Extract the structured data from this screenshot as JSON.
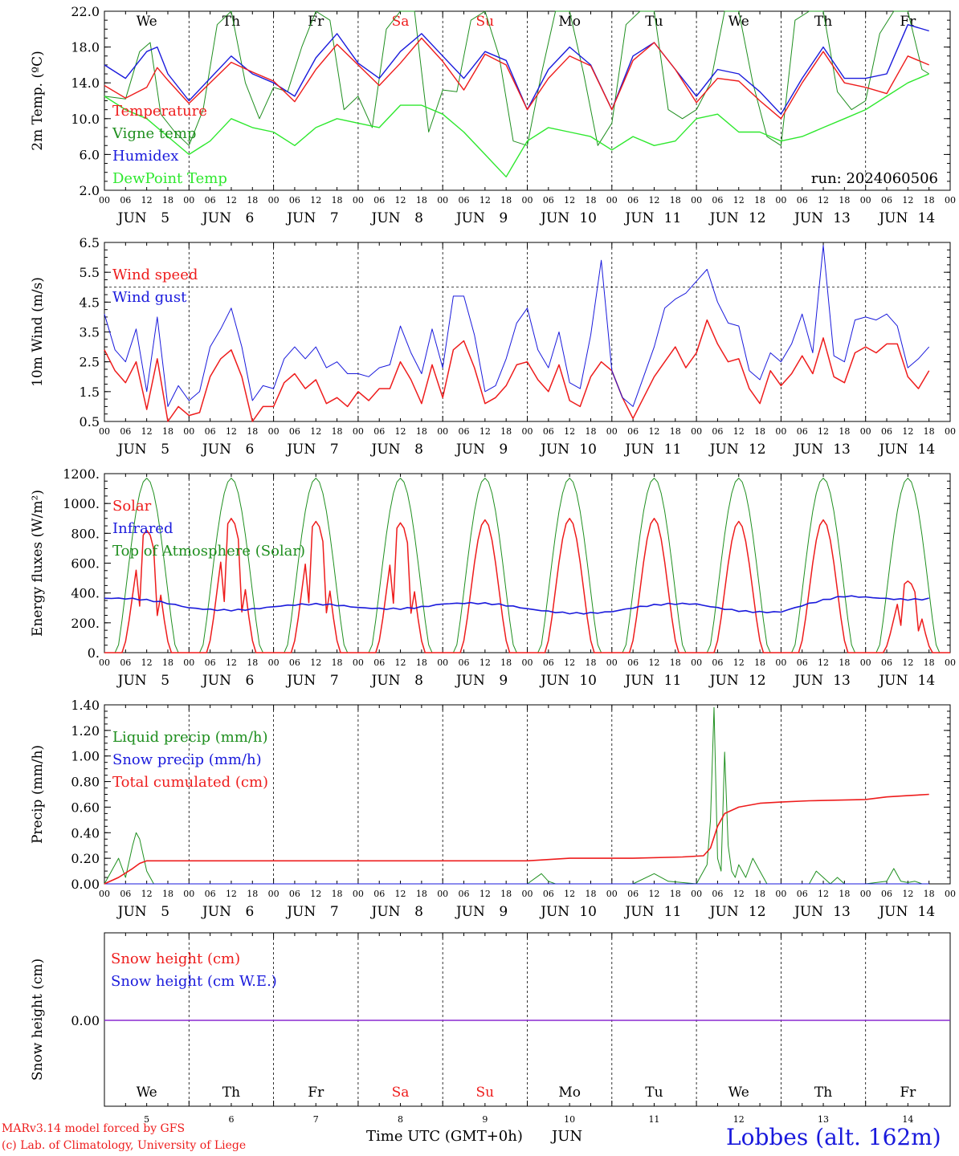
{
  "meteogram": {
    "run_label": "run: 2024060506",
    "days": [
      {
        "abbr": "We",
        "date": "5",
        "weekend": false
      },
      {
        "abbr": "Th",
        "date": "6",
        "weekend": false
      },
      {
        "abbr": "Fr",
        "date": "7",
        "weekend": false
      },
      {
        "abbr": "Sa",
        "date": "8",
        "weekend": true
      },
      {
        "abbr": "Su",
        "date": "9",
        "weekend": true
      },
      {
        "abbr": "Mo",
        "date": "10",
        "weekend": false
      },
      {
        "abbr": "Tu",
        "date": "11",
        "weekend": false
      },
      {
        "abbr": "We",
        "date": "12",
        "weekend": false
      },
      {
        "abbr": "Th",
        "date": "13",
        "weekend": false
      },
      {
        "abbr": "Fr",
        "date": "14",
        "weekend": false
      }
    ],
    "month": "JUN",
    "hour_ticks": [
      "00",
      "06",
      "12",
      "18"
    ],
    "final_tick": "00",
    "colors": {
      "red": "#ee1c1c",
      "green": "#1f8f1f",
      "blue": "#1a1adc",
      "lightgreen": "#2ee82e",
      "purple": "#8a2ad0",
      "weekend": "#ee1c1c"
    },
    "footer": {
      "model": "MARv3.14 model forced by GFS",
      "credit": "(c) Lab. of Climatology, University of Liege",
      "xlabel": "Time UTC (GMT+0h)",
      "month": "JUN",
      "location": "Lobbes (alt. 162m)"
    }
  },
  "chart_data": [
    {
      "type": "line",
      "ylabel": "2m Temp. (ºC)",
      "ylim": [
        2,
        22
      ],
      "yticks": [
        "2.0",
        "6.0",
        "10.0",
        "14.0",
        "18.0",
        "22.0"
      ],
      "x_unit": "hours since JUN 5 00 UTC",
      "legend": [
        "Temperature",
        "Vigne temp",
        "Humidex",
        "DewPoint Temp"
      ],
      "series": [
        {
          "name": "Temperature",
          "color": "red",
          "x": [
            0,
            6,
            12,
            15,
            18,
            24,
            30,
            36,
            42,
            48,
            54,
            60,
            66,
            72,
            78,
            84,
            90,
            96,
            102,
            108,
            114,
            120,
            126,
            132,
            138,
            144,
            150,
            156,
            162,
            168,
            174,
            180,
            186,
            192,
            198,
            204,
            210,
            216,
            222,
            228,
            234
          ],
          "y": [
            13.7,
            12.3,
            13.5,
            15.7,
            14.3,
            11.7,
            14.0,
            16.3,
            15.2,
            14.2,
            11.9,
            15.5,
            18.3,
            16.0,
            13.7,
            16.2,
            19.0,
            16.4,
            13.2,
            17.2,
            16.0,
            11.0,
            14.5,
            17.0,
            15.9,
            11.0,
            16.5,
            18.5,
            15.5,
            11.8,
            14.5,
            14.2,
            12.0,
            10.0,
            14.0,
            17.5,
            14.0,
            13.5,
            12.8,
            17.0,
            16.0
          ]
        },
        {
          "name": "Vigne temp",
          "color": "green",
          "x": [
            0,
            6,
            10,
            13,
            16,
            20,
            24,
            28,
            32,
            36,
            40,
            44,
            48,
            52,
            56,
            60,
            64,
            68,
            72,
            76,
            80,
            84,
            88,
            92,
            96,
            100,
            104,
            108,
            112,
            116,
            120,
            124,
            128,
            132,
            136,
            140,
            144,
            148,
            152,
            156,
            160,
            164,
            168,
            172,
            176,
            180,
            184,
            188,
            192,
            196,
            200,
            204,
            208,
            212,
            216,
            220,
            224,
            228,
            232,
            234
          ],
          "y": [
            12.5,
            12.2,
            17.5,
            18.5,
            10.5,
            8.5,
            7.0,
            11.0,
            20.5,
            22.0,
            14.0,
            10.0,
            13.5,
            13.0,
            18.0,
            22.0,
            21.0,
            11.0,
            12.5,
            9.0,
            20.0,
            22.0,
            22.0,
            8.5,
            13.2,
            13.0,
            21.0,
            22.0,
            17.0,
            7.5,
            7.0,
            15.0,
            22.0,
            22.0,
            15.0,
            7.0,
            9.5,
            20.5,
            22.0,
            22.0,
            11.0,
            10.0,
            11.0,
            14.0,
            22.0,
            22.0,
            14.0,
            8.0,
            7.0,
            21.0,
            22.0,
            22.0,
            13.0,
            11.0,
            12.0,
            19.5,
            22.0,
            22.0,
            15.5,
            15.0
          ]
        },
        {
          "name": "Humidex",
          "color": "blue",
          "x": [
            0,
            6,
            12,
            15,
            18,
            24,
            30,
            36,
            42,
            48,
            54,
            60,
            66,
            72,
            78,
            84,
            90,
            96,
            102,
            108,
            114,
            120,
            126,
            132,
            138,
            144,
            150,
            156,
            162,
            168,
            174,
            180,
            186,
            192,
            198,
            204,
            210,
            216,
            222,
            228,
            234
          ],
          "y": [
            16.0,
            14.5,
            17.5,
            18.0,
            15.0,
            12.0,
            14.5,
            17.0,
            15.0,
            14.0,
            12.5,
            16.8,
            19.5,
            16.2,
            14.5,
            17.5,
            19.5,
            17.0,
            14.5,
            17.5,
            16.5,
            11.0,
            15.5,
            18.0,
            16.0,
            11.0,
            17.0,
            18.5,
            15.5,
            12.5,
            15.5,
            15.0,
            13.0,
            10.5,
            14.5,
            18.0,
            14.5,
            14.5,
            15.0,
            20.5,
            19.8
          ]
        },
        {
          "name": "DewPoint Temp",
          "color": "lightgreen",
          "x": [
            0,
            6,
            12,
            18,
            24,
            30,
            36,
            42,
            48,
            54,
            60,
            66,
            72,
            78,
            84,
            90,
            96,
            102,
            108,
            114,
            120,
            126,
            132,
            138,
            144,
            150,
            156,
            162,
            168,
            174,
            180,
            186,
            192,
            198,
            204,
            210,
            216,
            222,
            228,
            234
          ],
          "y": [
            12.5,
            11.0,
            10.0,
            8.0,
            6.0,
            7.5,
            10.0,
            9.0,
            8.5,
            7.0,
            9.0,
            10.0,
            9.5,
            9.0,
            11.5,
            11.5,
            10.5,
            8.5,
            6.0,
            3.5,
            7.5,
            9.0,
            8.5,
            8.0,
            6.5,
            8.0,
            7.0,
            7.5,
            10.0,
            10.5,
            8.5,
            8.5,
            7.5,
            8.0,
            9.0,
            10.0,
            11.0,
            12.5,
            14.0,
            15.0
          ]
        }
      ]
    },
    {
      "type": "line",
      "ylabel": "10m Wind (m/s)",
      "ylim": [
        0.5,
        6.5
      ],
      "yticks": [
        "0.5",
        "1.5",
        "2.5",
        "3.5",
        "4.5",
        "5.5",
        "6.5"
      ],
      "reference_line": 5.0,
      "legend": [
        "Wind speed",
        "Wind gust"
      ],
      "series": [
        {
          "name": "Wind speed",
          "color": "red",
          "x": [
            0,
            3,
            6,
            9,
            12,
            15,
            18,
            21,
            24,
            27,
            30,
            33,
            36,
            39,
            42,
            45,
            48,
            51,
            54,
            57,
            60,
            63,
            66,
            69,
            72,
            75,
            78,
            81,
            84,
            87,
            90,
            93,
            96,
            99,
            102,
            105,
            108,
            111,
            114,
            117,
            120,
            123,
            126,
            129,
            132,
            135,
            138,
            141,
            144,
            147,
            150,
            153,
            156,
            159,
            162,
            165,
            168,
            171,
            174,
            177,
            180,
            183,
            186,
            189,
            192,
            195,
            198,
            201,
            204,
            207,
            210,
            213,
            216,
            219,
            222,
            225,
            228,
            231,
            234
          ],
          "y": [
            2.9,
            2.2,
            1.8,
            2.5,
            0.9,
            2.6,
            0.5,
            1.0,
            0.7,
            0.8,
            2.0,
            2.6,
            2.9,
            2.0,
            0.5,
            1.0,
            1.0,
            1.8,
            2.1,
            1.6,
            1.9,
            1.1,
            1.3,
            1.0,
            1.5,
            1.2,
            1.6,
            1.6,
            2.5,
            1.9,
            1.1,
            2.4,
            1.3,
            2.9,
            3.2,
            2.3,
            1.1,
            1.3,
            1.7,
            2.4,
            2.5,
            1.9,
            1.5,
            2.4,
            1.2,
            1.0,
            2.0,
            2.5,
            2.2,
            1.3,
            0.6,
            1.3,
            2.0,
            2.5,
            3.0,
            2.3,
            2.8,
            3.9,
            3.1,
            2.5,
            2.6,
            1.6,
            1.1,
            2.2,
            1.7,
            2.1,
            2.7,
            2.1,
            3.3,
            2.0,
            1.8,
            2.8,
            3.0,
            2.8,
            3.1,
            3.1,
            2.0,
            1.6,
            2.2
          ]
        },
        {
          "name": "Wind gust",
          "color": "blue",
          "x": [
            0,
            3,
            6,
            9,
            12,
            15,
            18,
            21,
            24,
            27,
            30,
            33,
            36,
            39,
            42,
            45,
            48,
            51,
            54,
            57,
            60,
            63,
            66,
            69,
            72,
            75,
            78,
            81,
            84,
            87,
            90,
            93,
            96,
            99,
            102,
            105,
            108,
            111,
            114,
            117,
            120,
            123,
            126,
            129,
            132,
            135,
            138,
            141,
            144,
            147,
            150,
            153,
            156,
            159,
            162,
            165,
            168,
            171,
            174,
            177,
            180,
            183,
            186,
            189,
            192,
            195,
            198,
            201,
            204,
            207,
            210,
            213,
            216,
            219,
            222,
            225,
            228,
            231,
            234
          ],
          "y": [
            4.1,
            2.9,
            2.5,
            3.6,
            1.5,
            4.0,
            1.0,
            1.7,
            1.2,
            1.5,
            3.0,
            3.6,
            4.3,
            3.0,
            1.2,
            1.7,
            1.6,
            2.6,
            3.0,
            2.6,
            3.0,
            2.3,
            2.5,
            2.1,
            2.1,
            2.0,
            2.3,
            2.4,
            3.7,
            2.8,
            2.1,
            3.6,
            2.3,
            4.7,
            4.7,
            3.4,
            1.5,
            1.7,
            2.6,
            3.8,
            4.3,
            2.9,
            2.3,
            3.5,
            1.8,
            1.6,
            3.4,
            5.9,
            2.2,
            1.3,
            1.0,
            2.0,
            3.0,
            4.3,
            4.6,
            4.8,
            5.2,
            5.6,
            4.5,
            3.8,
            3.7,
            2.2,
            1.9,
            2.8,
            2.5,
            3.1,
            4.1,
            2.8,
            6.4,
            2.7,
            2.5,
            3.9,
            4.0,
            3.9,
            4.1,
            3.7,
            2.3,
            2.6,
            3.0
          ]
        }
      ]
    },
    {
      "type": "line",
      "ylabel": "Energy fluxes (W/m²)",
      "ylim": [
        0,
        1200
      ],
      "yticks": [
        "0.",
        "200.",
        "400.",
        "600.",
        "800.",
        "1000.",
        "1200."
      ],
      "legend": [
        "Solar",
        "Infrared",
        "Top of Atmosphere (Solar)"
      ],
      "toa_peak": 1170,
      "solar_peaks": [
        820,
        900,
        880,
        870,
        890,
        900,
        900,
        880,
        890,
        480
      ],
      "infrared": {
        "x": [
          0,
          24,
          48,
          72,
          96,
          120,
          144,
          168,
          192,
          210,
          234
        ],
        "y": [
          365,
          300,
          310,
          300,
          330,
          290,
          280,
          320,
          280,
          360,
          380
        ]
      },
      "series_colors": {
        "Solar": "red",
        "Infrared": "blue",
        "Top of Atmosphere (Solar)": "green"
      }
    },
    {
      "type": "line",
      "ylabel": "Precip (mm/h)",
      "ylim": [
        0,
        1.4
      ],
      "yticks": [
        "0.00",
        "0.20",
        "0.40",
        "0.60",
        "0.80",
        "1.00",
        "1.20",
        "1.40"
      ],
      "legend": [
        "Liquid precip (mm/h)",
        "Snow precip (mm/h)",
        "Total cumulated (cm)"
      ],
      "series": [
        {
          "name": "Liquid precip (mm/h)",
          "color": "green",
          "x": [
            0,
            2,
            4,
            6,
            8,
            9,
            10,
            12,
            14,
            24,
            120,
            124,
            126,
            128,
            150,
            156,
            160,
            168,
            170,
            171,
            172,
            173,
            174,
            175,
            176,
            177,
            178,
            179,
            180,
            182,
            184,
            186,
            188,
            192,
            200,
            202,
            204,
            206,
            208,
            210,
            216,
            222,
            224,
            226,
            228,
            230,
            232,
            234
          ],
          "y": [
            0,
            0.1,
            0.2,
            0.05,
            0.3,
            0.4,
            0.35,
            0.1,
            0,
            0,
            0,
            0.08,
            0.02,
            0,
            0,
            0.08,
            0.02,
            0,
            0.1,
            0.15,
            0.5,
            1.38,
            0.2,
            0.1,
            1.03,
            0.3,
            0.1,
            0.05,
            0.15,
            0.05,
            0.2,
            0.1,
            0,
            0,
            0,
            0.1,
            0.05,
            0,
            0.05,
            0,
            0,
            0.02,
            0.12,
            0.02,
            0.01,
            0.02,
            0,
            0
          ]
        },
        {
          "name": "Total cumulated (cm)",
          "color": "red",
          "x": [
            0,
            4,
            8,
            10,
            12,
            24,
            60,
            96,
            120,
            126,
            132,
            150,
            164,
            170,
            172,
            174,
            176,
            180,
            186,
            192,
            200,
            216,
            222,
            228,
            234
          ],
          "y": [
            0,
            0.05,
            0.12,
            0.16,
            0.18,
            0.18,
            0.18,
            0.18,
            0.18,
            0.19,
            0.2,
            0.2,
            0.21,
            0.22,
            0.28,
            0.45,
            0.55,
            0.6,
            0.63,
            0.64,
            0.65,
            0.66,
            0.68,
            0.69,
            0.7
          ]
        }
      ]
    },
    {
      "type": "line",
      "ylabel": "Snow height (cm)",
      "ylim": [
        -1,
        1
      ],
      "yticks": [
        "0.00"
      ],
      "legend": [
        "Snow height (cm)",
        "Snow height (cm W.E.)"
      ],
      "series": [
        {
          "name": "Snow height (cm)",
          "color": "red",
          "x": [
            0,
            240
          ],
          "y": [
            0,
            0
          ]
        },
        {
          "name": "Snow height (cm W.E.)",
          "color": "blue",
          "x": [
            0,
            240
          ],
          "y": [
            0,
            0
          ]
        }
      ]
    }
  ]
}
